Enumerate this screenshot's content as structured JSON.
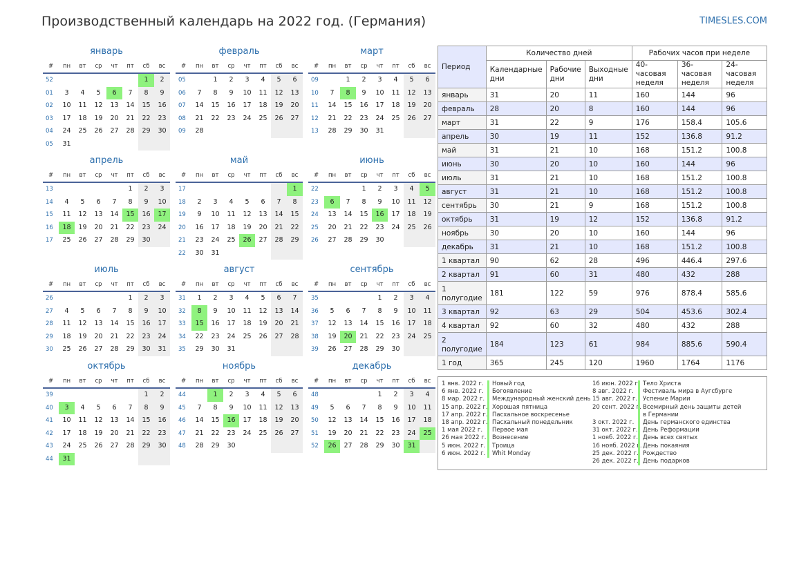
{
  "header": {
    "title": "Производственный календарь на 2022 год. (Германия)",
    "site": "TIMESLES.COM"
  },
  "calendar": {
    "weekday_labels": [
      "#",
      "пн",
      "вт",
      "ср",
      "чт",
      "пт",
      "сб",
      "вс"
    ],
    "months": [
      {
        "name": "январь",
        "rows": [
          [
            52,
            "",
            "",
            "",
            "",
            "",
            "1",
            "2"
          ],
          [
            1,
            "3",
            "4",
            "5",
            "6",
            "7",
            "8",
            "9"
          ],
          [
            2,
            "10",
            "11",
            "12",
            "13",
            "14",
            "15",
            "16"
          ],
          [
            3,
            "17",
            "18",
            "19",
            "20",
            "21",
            "22",
            "23"
          ],
          [
            4,
            "24",
            "25",
            "26",
            "27",
            "28",
            "29",
            "30"
          ],
          [
            5,
            "31",
            "",
            "",
            "",
            "",
            "",
            ""
          ]
        ],
        "holidays": [
          "1",
          "6"
        ]
      },
      {
        "name": "февраль",
        "rows": [
          [
            5,
            "",
            "1",
            "2",
            "3",
            "4",
            "5",
            "6"
          ],
          [
            6,
            "7",
            "8",
            "9",
            "10",
            "11",
            "12",
            "13"
          ],
          [
            7,
            "14",
            "15",
            "16",
            "17",
            "18",
            "19",
            "20"
          ],
          [
            8,
            "21",
            "22",
            "23",
            "24",
            "25",
            "26",
            "27"
          ],
          [
            9,
            "28",
            "",
            "",
            "",
            "",
            "",
            ""
          ]
        ],
        "holidays": []
      },
      {
        "name": "март",
        "rows": [
          [
            9,
            "",
            "1",
            "2",
            "3",
            "4",
            "5",
            "6"
          ],
          [
            10,
            "7",
            "8",
            "9",
            "10",
            "11",
            "12",
            "13"
          ],
          [
            11,
            "14",
            "15",
            "16",
            "17",
            "18",
            "19",
            "20"
          ],
          [
            12,
            "21",
            "22",
            "23",
            "24",
            "25",
            "26",
            "27"
          ],
          [
            13,
            "28",
            "29",
            "30",
            "31",
            "",
            "",
            ""
          ]
        ],
        "holidays": [
          "8"
        ]
      },
      {
        "name": "апрель",
        "rows": [
          [
            13,
            "",
            "",
            "",
            "",
            "1",
            "2",
            "3"
          ],
          [
            14,
            "4",
            "5",
            "6",
            "7",
            "8",
            "9",
            "10"
          ],
          [
            15,
            "11",
            "12",
            "13",
            "14",
            "15",
            "16",
            "17"
          ],
          [
            16,
            "18",
            "19",
            "20",
            "21",
            "22",
            "23",
            "24"
          ],
          [
            17,
            "25",
            "26",
            "27",
            "28",
            "29",
            "30",
            ""
          ]
        ],
        "holidays": [
          "15",
          "17",
          "18"
        ]
      },
      {
        "name": "май",
        "rows": [
          [
            17,
            "",
            "",
            "",
            "",
            "",
            "",
            "1"
          ],
          [
            18,
            "2",
            "3",
            "4",
            "5",
            "6",
            "7",
            "8"
          ],
          [
            19,
            "9",
            "10",
            "11",
            "12",
            "13",
            "14",
            "15"
          ],
          [
            20,
            "16",
            "17",
            "18",
            "19",
            "20",
            "21",
            "22"
          ],
          [
            21,
            "23",
            "24",
            "25",
            "26",
            "27",
            "28",
            "29"
          ],
          [
            22,
            "30",
            "31",
            "",
            "",
            "",
            "",
            ""
          ]
        ],
        "holidays": [
          "1",
          "26"
        ]
      },
      {
        "name": "июнь",
        "rows": [
          [
            22,
            "",
            "",
            "1",
            "2",
            "3",
            "4",
            "5"
          ],
          [
            23,
            "6",
            "7",
            "8",
            "9",
            "10",
            "11",
            "12"
          ],
          [
            24,
            "13",
            "14",
            "15",
            "16",
            "17",
            "18",
            "19"
          ],
          [
            25,
            "20",
            "21",
            "22",
            "23",
            "24",
            "25",
            "26"
          ],
          [
            26,
            "27",
            "28",
            "29",
            "30",
            "",
            "",
            ""
          ]
        ],
        "holidays": [
          "5",
          "6",
          "16"
        ]
      },
      {
        "name": "июль",
        "rows": [
          [
            26,
            "",
            "",
            "",
            "",
            "1",
            "2",
            "3"
          ],
          [
            27,
            "4",
            "5",
            "6",
            "7",
            "8",
            "9",
            "10"
          ],
          [
            28,
            "11",
            "12",
            "13",
            "14",
            "15",
            "16",
            "17"
          ],
          [
            29,
            "18",
            "19",
            "20",
            "21",
            "22",
            "23",
            "24"
          ],
          [
            30,
            "25",
            "26",
            "27",
            "28",
            "29",
            "30",
            "31"
          ]
        ],
        "holidays": []
      },
      {
        "name": "август",
        "rows": [
          [
            31,
            "1",
            "2",
            "3",
            "4",
            "5",
            "6",
            "7"
          ],
          [
            32,
            "8",
            "9",
            "10",
            "11",
            "12",
            "13",
            "14"
          ],
          [
            33,
            "15",
            "16",
            "17",
            "18",
            "19",
            "20",
            "21"
          ],
          [
            34,
            "22",
            "23",
            "24",
            "25",
            "26",
            "27",
            "28"
          ],
          [
            35,
            "29",
            "30",
            "31",
            "",
            "",
            "",
            ""
          ]
        ],
        "holidays": [
          "8",
          "15"
        ]
      },
      {
        "name": "сентябрь",
        "rows": [
          [
            35,
            "",
            "",
            "",
            "1",
            "2",
            "3",
            "4"
          ],
          [
            36,
            "5",
            "6",
            "7",
            "8",
            "9",
            "10",
            "11"
          ],
          [
            37,
            "12",
            "13",
            "14",
            "15",
            "16",
            "17",
            "18"
          ],
          [
            38,
            "19",
            "20",
            "21",
            "22",
            "23",
            "24",
            "25"
          ],
          [
            39,
            "26",
            "27",
            "28",
            "29",
            "30",
            "",
            ""
          ]
        ],
        "holidays": [
          "20"
        ]
      },
      {
        "name": "октябрь",
        "rows": [
          [
            39,
            "",
            "",
            "",
            "",
            "",
            "1",
            "2"
          ],
          [
            40,
            "3",
            "4",
            "5",
            "6",
            "7",
            "8",
            "9"
          ],
          [
            41,
            "10",
            "11",
            "12",
            "13",
            "14",
            "15",
            "16"
          ],
          [
            42,
            "17",
            "18",
            "19",
            "20",
            "21",
            "22",
            "23"
          ],
          [
            43,
            "24",
            "25",
            "26",
            "27",
            "28",
            "29",
            "30"
          ],
          [
            44,
            "31",
            "",
            "",
            "",
            "",
            "",
            ""
          ]
        ],
        "holidays": [
          "3",
          "31"
        ]
      },
      {
        "name": "ноябрь",
        "rows": [
          [
            44,
            "",
            "1",
            "2",
            "3",
            "4",
            "5",
            "6"
          ],
          [
            45,
            "7",
            "8",
            "9",
            "10",
            "11",
            "12",
            "13"
          ],
          [
            46,
            "14",
            "15",
            "16",
            "17",
            "18",
            "19",
            "20"
          ],
          [
            47,
            "21",
            "22",
            "23",
            "24",
            "25",
            "26",
            "27"
          ],
          [
            48,
            "28",
            "29",
            "30",
            "",
            "",
            "",
            ""
          ]
        ],
        "holidays": [
          "1",
          "16"
        ]
      },
      {
        "name": "декабрь",
        "rows": [
          [
            48,
            "",
            "",
            "",
            "1",
            "2",
            "3",
            "4"
          ],
          [
            49,
            "5",
            "6",
            "7",
            "8",
            "9",
            "10",
            "11"
          ],
          [
            50,
            "12",
            "13",
            "14",
            "15",
            "16",
            "17",
            "18"
          ],
          [
            51,
            "19",
            "20",
            "21",
            "22",
            "23",
            "24",
            "25"
          ],
          [
            52,
            "26",
            "27",
            "28",
            "29",
            "30",
            "31",
            ""
          ]
        ],
        "holidays": [
          "25",
          "26",
          "31"
        ]
      }
    ]
  },
  "stats": {
    "period_header": "Период",
    "days_header": "Количество дней",
    "hours_header": "Рабочих часов при неделе",
    "columns": [
      "Календарные дни",
      "Рабочие дни",
      "Выходные дни",
      "40-часовая неделя",
      "36-часовая неделя",
      "24-часовая неделя"
    ],
    "rows": [
      [
        "январь",
        "31",
        "20",
        "11",
        "160",
        "144",
        "96"
      ],
      [
        "февраль",
        "28",
        "20",
        "8",
        "160",
        "144",
        "96"
      ],
      [
        "март",
        "31",
        "22",
        "9",
        "176",
        "158.4",
        "105.6"
      ],
      [
        "апрель",
        "30",
        "19",
        "11",
        "152",
        "136.8",
        "91.2"
      ],
      [
        "май",
        "31",
        "21",
        "10",
        "168",
        "151.2",
        "100.8"
      ],
      [
        "июнь",
        "30",
        "20",
        "10",
        "160",
        "144",
        "96"
      ],
      [
        "июль",
        "31",
        "21",
        "10",
        "168",
        "151.2",
        "100.8"
      ],
      [
        "август",
        "31",
        "21",
        "10",
        "168",
        "151.2",
        "100.8"
      ],
      [
        "сентябрь",
        "30",
        "21",
        "9",
        "168",
        "151.2",
        "100.8"
      ],
      [
        "октябрь",
        "31",
        "19",
        "12",
        "152",
        "136.8",
        "91.2"
      ],
      [
        "ноябрь",
        "30",
        "20",
        "10",
        "160",
        "144",
        "96"
      ],
      [
        "декабрь",
        "31",
        "21",
        "10",
        "168",
        "151.2",
        "100.8"
      ],
      [
        "1 квартал",
        "90",
        "62",
        "28",
        "496",
        "446.4",
        "297.6"
      ],
      [
        "2 квартал",
        "91",
        "60",
        "31",
        "480",
        "432",
        "288"
      ],
      [
        "1 полугодие",
        "181",
        "122",
        "59",
        "976",
        "878.4",
        "585.6"
      ],
      [
        "3 квартал",
        "92",
        "63",
        "29",
        "504",
        "453.6",
        "302.4"
      ],
      [
        "4 квартал",
        "92",
        "60",
        "32",
        "480",
        "432",
        "288"
      ],
      [
        "2 полугодие",
        "184",
        "123",
        "61",
        "984",
        "885.6",
        "590.4"
      ],
      [
        "1 год",
        "365",
        "245",
        "120",
        "1960",
        "1764",
        "1176"
      ]
    ]
  },
  "holidays": {
    "left": [
      {
        "date": "1 янв. 2022 г.",
        "name": "Новый год"
      },
      {
        "date": "6 янв. 2022 г.",
        "name": "Богоявление"
      },
      {
        "date": "8 мар. 2022 г.",
        "name": "Международный женский день"
      },
      {
        "date": "15 апр. 2022 г.",
        "name": "Хорошая пятница"
      },
      {
        "date": "17 апр. 2022 г.",
        "name": "Пасхальное воскресенье"
      },
      {
        "date": "18 апр. 2022 г.",
        "name": "Пасхальный понедельник"
      },
      {
        "date": "1 мая 2022 г.",
        "name": "Первое мая"
      },
      {
        "date": "26 мая 2022 г.",
        "name": "Вознесение"
      },
      {
        "date": "5 июн. 2022 г.",
        "name": "Троица"
      },
      {
        "date": "6 июн. 2022 г.",
        "name": "Whit Monday"
      }
    ],
    "right": [
      {
        "date": "16 июн. 2022 г.",
        "name": "Тело Христа"
      },
      {
        "date": "8 авг. 2022 г.",
        "name": "Фестиваль мира в Аугсбурге"
      },
      {
        "date": "15 авг. 2022 г.",
        "name": "Успение Марии"
      },
      {
        "date": "20 сент. 2022 г.",
        "name": "Всемирный день защиты детей в Германии"
      },
      {
        "date": "3 окт. 2022 г.",
        "name": "День германского единства"
      },
      {
        "date": "31 окт. 2022 г.",
        "name": "День Реформации"
      },
      {
        "date": "1 нояб. 2022 г.",
        "name": "День всех святых"
      },
      {
        "date": "16 нояб. 2022 г.",
        "name": "День покаяния"
      },
      {
        "date": "25 дек. 2022 г.",
        "name": "Рождество"
      },
      {
        "date": "26 дек. 2022 г.",
        "name": "День подарков"
      }
    ]
  }
}
